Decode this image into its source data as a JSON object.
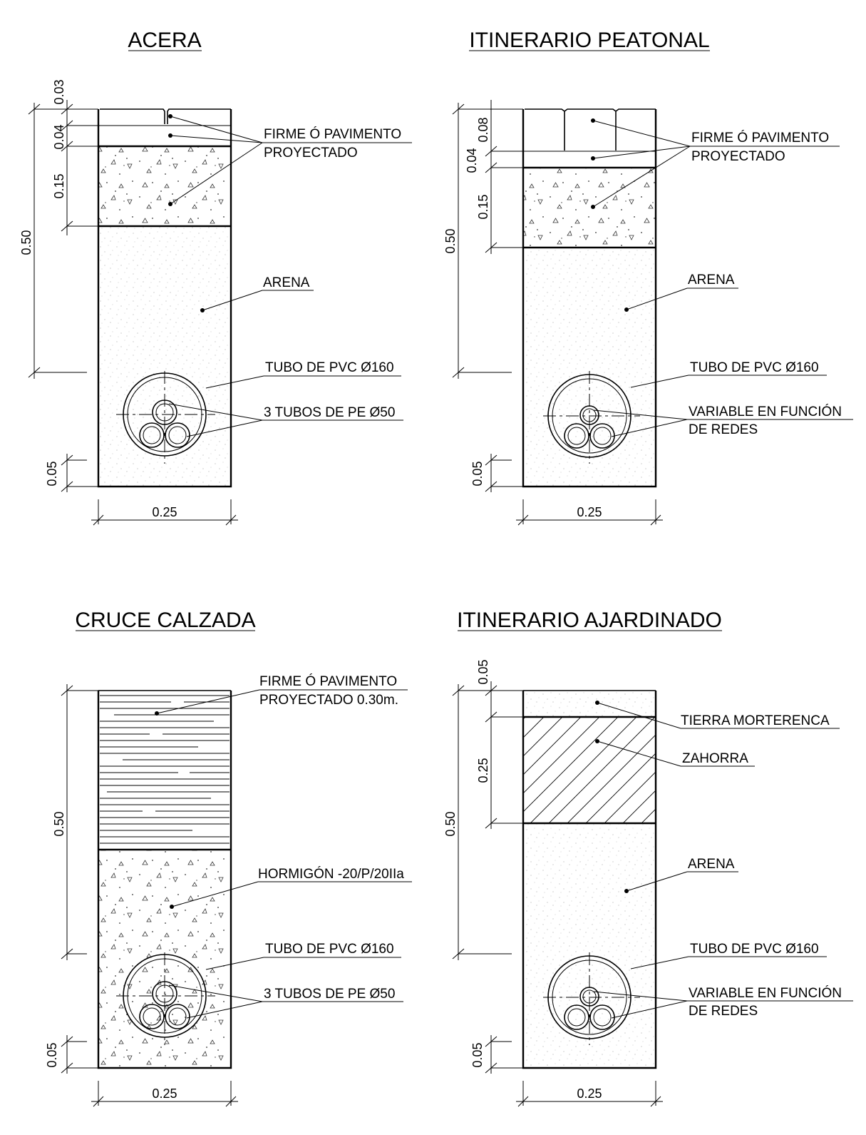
{
  "sections": [
    {
      "id": "acera",
      "title": "ACERA",
      "dims": {
        "top": "0.03",
        "second": "0.04",
        "third": "0.15",
        "total": "0.50",
        "bottom": "0.05",
        "width": "0.25"
      },
      "labels": {
        "firme_1": "FIRME Ó PAVIMENTO",
        "firme_2": "PROYECTADO",
        "arena": "ARENA",
        "tubo": "TUBO DE PVC Ø160",
        "inner_1": "3 TUBOS DE PE Ø50"
      }
    },
    {
      "id": "peatonal",
      "title": "ITINERARIO PEATONAL",
      "dims": {
        "top": "0.08",
        "second": "0.04",
        "third": "0.15",
        "total": "0.50",
        "bottom": "0.05",
        "width": "0.25"
      },
      "labels": {
        "firme_1": "FIRME Ó PAVIMENTO",
        "firme_2": "PROYECTADO",
        "arena": "ARENA",
        "tubo": "TUBO DE PVC Ø160",
        "inner_1": "VARIABLE EN FUNCIÓN",
        "inner_2": "DE  REDES"
      }
    },
    {
      "id": "calzada",
      "title": "CRUCE CALZADA",
      "dims": {
        "total": "0.50",
        "bottom": "0.05",
        "width": "0.25"
      },
      "labels": {
        "firme_1": "FIRME Ó PAVIMENTO",
        "firme_2": "PROYECTADO 0.30m.",
        "hormigon": "HORMIGÓN -20/P/20IIa",
        "tubo": "TUBO DE PVC Ø160",
        "inner_1": "3 TUBOS DE PE Ø50"
      }
    },
    {
      "id": "ajardinado",
      "title": "ITINERARIO AJARDINADO",
      "dims": {
        "top": "0.05",
        "second": "0.25",
        "total": "0.50",
        "bottom": "0.05",
        "width": "0.25"
      },
      "labels": {
        "tierra": "TIERRA MORTERENCA",
        "zahorra": "ZAHORRA",
        "arena": "ARENA",
        "tubo": "TUBO DE PVC Ø160",
        "inner_1": "VARIABLE EN FUNCIÓN",
        "inner_2": "DE  REDES"
      }
    }
  ]
}
